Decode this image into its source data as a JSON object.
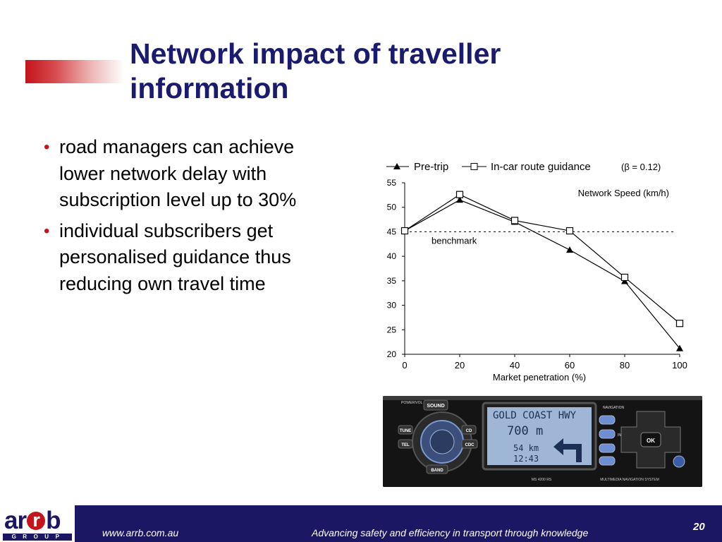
{
  "slide": {
    "title": "Network impact of traveller information",
    "bullets": [
      "road managers can achieve lower network delay with subscription level up to 30%",
      "individual subscribers get personalised guidance thus reducing own travel time"
    ]
  },
  "chart_data": {
    "type": "line",
    "x": [
      0,
      20,
      40,
      60,
      80,
      100
    ],
    "series": [
      {
        "name": "Pre-trip",
        "marker": "filled-triangle",
        "values": [
          45.2,
          51.5,
          47.0,
          41.3,
          34.9,
          21.2
        ]
      },
      {
        "name": "In-car route guidance",
        "marker": "open-square",
        "values": [
          45.2,
          52.6,
          47.3,
          45.2,
          35.7,
          26.3
        ]
      }
    ],
    "legend_note": "(β = 0.12)",
    "annotation": "Network Speed (km/h)",
    "benchmark": {
      "value": 45,
      "label": "benchmark"
    },
    "xlabel": "Market penetration (%)",
    "ylabel": "",
    "xlim": [
      0,
      100
    ],
    "ylim": [
      20,
      55
    ],
    "xticks": [
      0,
      20,
      40,
      60,
      80,
      100
    ],
    "yticks": [
      20,
      25,
      30,
      35,
      40,
      45,
      50,
      55
    ],
    "grid": false,
    "legend_position": "top"
  },
  "device": {
    "screen_line1": "GOLD COAST HWY",
    "screen_line2": "700 m",
    "screen_line3": "54 km",
    "screen_line4": "12:43",
    "buttons": [
      "SOUND",
      "TUNE",
      "CD",
      "TEL",
      "CDC",
      "BAND",
      "OK",
      "NAVIGATION",
      "INFO",
      "POWER/VOL"
    ],
    "model": "MS 4200 RS",
    "caption": "MULTIMEDIA NAVIGATION SYSTEM"
  },
  "footer": {
    "logo_word": "arrb",
    "logo_sub": "GROUP",
    "url": "www.arrb.com.au",
    "tagline": "Advancing safety and efficiency in transport through knowledge",
    "page_number": "20"
  },
  "colors": {
    "title": "#1a1a6e",
    "accent": "#c4141c",
    "footer_bg": "#1c1763",
    "screen": "#9fb6d6"
  }
}
